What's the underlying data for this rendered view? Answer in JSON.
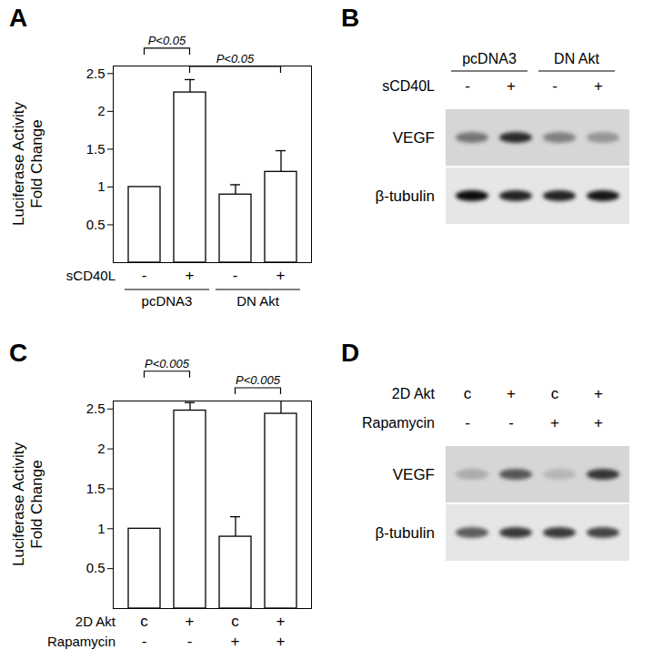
{
  "chart_data": [
    {
      "panel_label": "A",
      "type": "bar",
      "tick_labels": "y",
      "color": "#ffffff",
      "x_rows": [
        {
          "label": "sCD40L",
          "values": [
            "-",
            "+",
            "-",
            "+"
          ]
        }
      ],
      "groups": [
        {
          "label": "pcDNA3",
          "from": 0,
          "to": 1
        },
        {
          "label": "DN Akt",
          "from": 2,
          "to": 3
        }
      ],
      "values": [
        1,
        2.25,
        0.9,
        1.2
      ],
      "errors": [
        0,
        0.17,
        0.13,
        0.28
      ],
      "y_label": "Luciferase Activity\nFold Change",
      "ylim": [
        0,
        2.6
      ],
      "yticks": [
        0.5,
        1,
        1.5,
        2,
        2.5
      ],
      "annotations": [
        {
          "from": 0,
          "to": 1,
          "label": "P<0.05"
        },
        {
          "from": 1,
          "to": 3,
          "label": "P<0.05"
        }
      ]
    },
    {
      "panel_label": "C",
      "type": "bar",
      "tick_labels": "y",
      "color": "#ffffff",
      "x_rows": [
        {
          "label": "2D Akt",
          "values": [
            "c",
            "+",
            "c",
            "+"
          ]
        },
        {
          "label": "Rapamycin",
          "values": [
            "-",
            "-",
            "+",
            "+"
          ]
        }
      ],
      "values": [
        1,
        2.48,
        0.9,
        2.44
      ],
      "errors": [
        0,
        0.1,
        0.25,
        0.18
      ],
      "y_label": "Luciferase Activity\nFold Change",
      "ylim": [
        0,
        2.6
      ],
      "yticks": [
        0.5,
        1,
        1.5,
        2,
        2.5
      ],
      "annotations": [
        {
          "from": 0,
          "to": 1,
          "label": "P<0.005"
        },
        {
          "from": 2,
          "to": 3,
          "label": "P<0.005"
        }
      ]
    }
  ],
  "blots": [
    {
      "panel_label": "B",
      "groups": [
        {
          "label": "pcDNA3",
          "from": 0,
          "to": 1
        },
        {
          "label": "DN Akt",
          "from": 2,
          "to": 3
        }
      ],
      "lane_rows": [
        {
          "label": "sCD40L",
          "values": [
            "-",
            "+",
            "-",
            "+"
          ]
        }
      ],
      "bands": [
        {
          "label": "VEGF",
          "intensity": [
            0.45,
            0.8,
            0.4,
            0.3
          ]
        },
        {
          "label": "β-tubulin",
          "intensity": [
            0.95,
            0.85,
            0.85,
            0.9
          ]
        }
      ]
    },
    {
      "panel_label": "D",
      "lane_rows": [
        {
          "label": "2D Akt",
          "values": [
            "c",
            "+",
            "c",
            "+"
          ]
        },
        {
          "label": "Rapamycin",
          "values": [
            "-",
            "-",
            "+",
            "+"
          ]
        }
      ],
      "bands": [
        {
          "label": "VEGF",
          "intensity": [
            0.2,
            0.6,
            0.15,
            0.75
          ]
        },
        {
          "label": "β-tubulin",
          "intensity": [
            0.6,
            0.75,
            0.75,
            0.7
          ]
        }
      ]
    }
  ]
}
